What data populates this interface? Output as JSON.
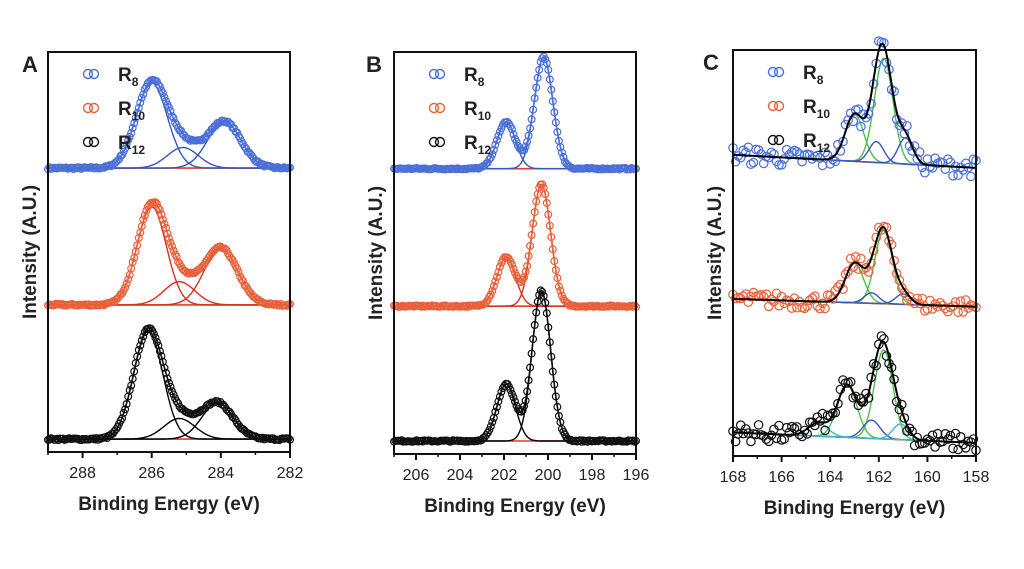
{
  "colors": {
    "R8": "#4a6fd6",
    "R10": "#e8603a",
    "R12": "#111111",
    "component_blue": "#3557c0",
    "component_red": "#d7301f",
    "component_black": "#000000",
    "component_green": "#4cc04c",
    "component_cyan": "#39b8c8",
    "baseline_red": "#e23a2a"
  },
  "chart_data": [
    {
      "panel": "A",
      "type": "line",
      "xlabel": "Binding Energy (eV)",
      "ylabel": "Intensity (A.U.)",
      "xlim": [
        289,
        282
      ],
      "xticks": [
        288,
        286,
        284,
        282
      ],
      "legend": [
        {
          "name": "R",
          "sub": "8",
          "series": "R8"
        },
        {
          "name": "R",
          "sub": "10",
          "series": "R10"
        },
        {
          "name": "R",
          "sub": "12",
          "series": "R12"
        }
      ],
      "series": [
        {
          "name": "R8",
          "offset": 0.95,
          "noise": 0.004,
          "peaks": [
            {
              "center": 286.0,
              "height": 0.33,
              "width": 0.45
            },
            {
              "center": 285.1,
              "height": 0.08,
              "width": 0.45
            },
            {
              "center": 283.9,
              "height": 0.18,
              "width": 0.48
            }
          ]
        },
        {
          "name": "R10",
          "offset": 0.42,
          "noise": 0.004,
          "peaks": [
            {
              "center": 286.0,
              "height": 0.38,
              "width": 0.42
            },
            {
              "center": 285.2,
              "height": 0.09,
              "width": 0.45
            },
            {
              "center": 284.0,
              "height": 0.22,
              "width": 0.48
            }
          ]
        },
        {
          "name": "R12",
          "offset": -0.1,
          "noise": 0.004,
          "peaks": [
            {
              "center": 286.1,
              "height": 0.42,
              "width": 0.42
            },
            {
              "center": 285.2,
              "height": 0.08,
              "width": 0.45
            },
            {
              "center": 284.1,
              "height": 0.14,
              "width": 0.45
            }
          ]
        }
      ]
    },
    {
      "panel": "B",
      "type": "line",
      "xlabel": "Binding Energy (eV)",
      "ylabel": "Intensity (A.U.)",
      "xlim": [
        207,
        196
      ],
      "xticks": [
        206,
        204,
        202,
        200,
        198,
        196
      ],
      "legend": [
        {
          "name": "R",
          "sub": "8",
          "series": "R8"
        },
        {
          "name": "R",
          "sub": "10",
          "series": "R10"
        },
        {
          "name": "R",
          "sub": "12",
          "series": "R12"
        }
      ],
      "series": [
        {
          "name": "R8",
          "offset": 0.95,
          "noise": 0.003,
          "peaks": [
            {
              "center": 201.9,
              "height": 0.18,
              "width": 0.42
            },
            {
              "center": 200.2,
              "height": 0.43,
              "width": 0.42
            }
          ]
        },
        {
          "name": "R10",
          "offset": 0.42,
          "noise": 0.003,
          "peaks": [
            {
              "center": 201.9,
              "height": 0.19,
              "width": 0.42
            },
            {
              "center": 200.3,
              "height": 0.47,
              "width": 0.42
            }
          ]
        },
        {
          "name": "R12",
          "offset": -0.1,
          "noise": 0.003,
          "peaks": [
            {
              "center": 201.9,
              "height": 0.22,
              "width": 0.42
            },
            {
              "center": 200.3,
              "height": 0.58,
              "width": 0.42
            }
          ]
        }
      ]
    },
    {
      "panel": "C",
      "type": "line",
      "xlabel": "Binding Energy (eV)",
      "ylabel": "Intensity (A.U.)",
      "xlim": [
        168,
        158
      ],
      "xticks": [
        168,
        166,
        164,
        162,
        160,
        158
      ],
      "legend": [
        {
          "name": "R",
          "sub": "8",
          "series": "R8"
        },
        {
          "name": "R",
          "sub": "10",
          "series": "R10"
        },
        {
          "name": "R",
          "sub": "12",
          "series": "R12"
        }
      ],
      "series": [
        {
          "name": "R8",
          "offset": 0.95,
          "noise": 0.035,
          "slope": 0.005,
          "peaks": [
            {
              "center": 161.8,
              "height": 0.4,
              "width": 0.38,
              "color": "component_green"
            },
            {
              "center": 163.0,
              "height": 0.18,
              "width": 0.38,
              "color": "component_green"
            },
            {
              "center": 162.1,
              "height": 0.08,
              "width": 0.3,
              "color": "component_blue"
            },
            {
              "center": 160.9,
              "height": 0.1,
              "width": 0.3,
              "color": "component_blue"
            }
          ]
        },
        {
          "name": "R10",
          "offset": 0.42,
          "noise": 0.03,
          "slope": 0.003,
          "peaks": [
            {
              "center": 161.8,
              "height": 0.28,
              "width": 0.36,
              "color": "component_green"
            },
            {
              "center": 163.0,
              "height": 0.15,
              "width": 0.38,
              "color": "component_green"
            },
            {
              "center": 162.3,
              "height": 0.04,
              "width": 0.3,
              "color": "component_blue"
            },
            {
              "center": 161.0,
              "height": 0.04,
              "width": 0.3,
              "color": "component_blue"
            }
          ]
        },
        {
          "name": "R12",
          "offset": -0.1,
          "noise": 0.035,
          "slope": 0.004,
          "peaks": [
            {
              "center": 161.8,
              "height": 0.34,
              "width": 0.38,
              "color": "component_green"
            },
            {
              "center": 163.3,
              "height": 0.2,
              "width": 0.4,
              "color": "component_green"
            },
            {
              "center": 162.3,
              "height": 0.07,
              "width": 0.35,
              "color": "component_blue"
            },
            {
              "center": 164.5,
              "height": 0.05,
              "width": 0.4,
              "color": "component_cyan"
            },
            {
              "center": 161.1,
              "height": 0.06,
              "width": 0.32,
              "color": "component_cyan"
            }
          ]
        }
      ]
    }
  ]
}
